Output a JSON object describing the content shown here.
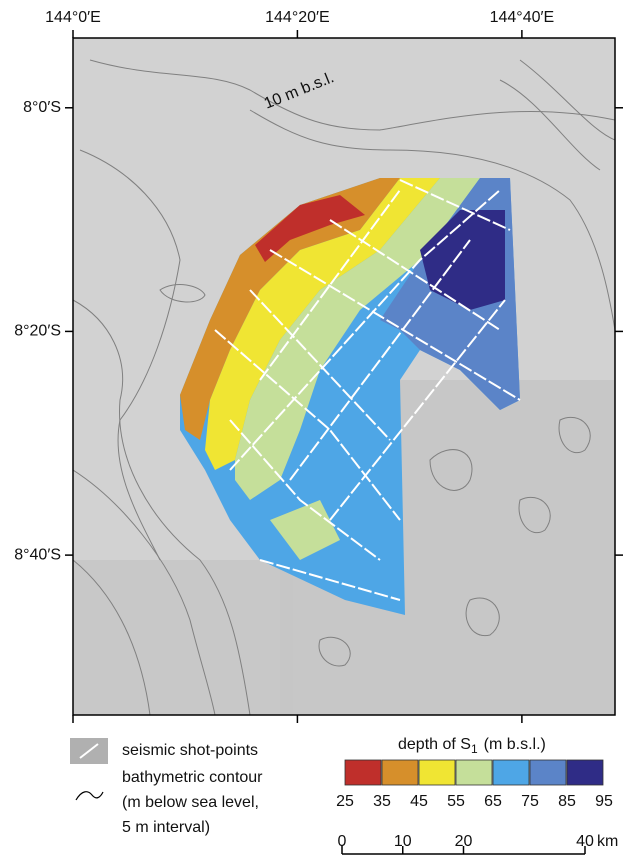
{
  "map": {
    "xticks": [
      {
        "value": 144.0,
        "label": "144°0′E"
      },
      {
        "value": 144.3333,
        "label": "144°20′E"
      },
      {
        "value": 144.6667,
        "label": "144°40′E"
      }
    ],
    "yticks": [
      {
        "value": 8.0,
        "label": "8°0′S"
      },
      {
        "value": 8.3333,
        "label": "8°20′S"
      },
      {
        "value": 8.6667,
        "label": "8°40′S"
      }
    ],
    "xlim": [
      144.0,
      144.805
    ],
    "ylim": [
      7.896,
      8.905
    ],
    "annotation": "10 m b.s.l."
  },
  "legend": {
    "shot_points": "seismic shot-points",
    "contour": [
      "bathymetric contour",
      "(m below sea level,",
      "5 m interval)"
    ]
  },
  "color_scale": {
    "title": "depth of S",
    "title_sub": "1",
    "title_unit": "(m b.s.l.)",
    "colors": [
      "#bf2f2b",
      "#d68f2b",
      "#f0e533",
      "#c5df9a",
      "#4ea6e6",
      "#5b84c8",
      "#2f2c86"
    ],
    "ticks": [
      25,
      35,
      45,
      55,
      65,
      75,
      85,
      95
    ]
  },
  "scale_bar": {
    "ticks": [
      0,
      10,
      20,
      40
    ],
    "unit": "km"
  }
}
